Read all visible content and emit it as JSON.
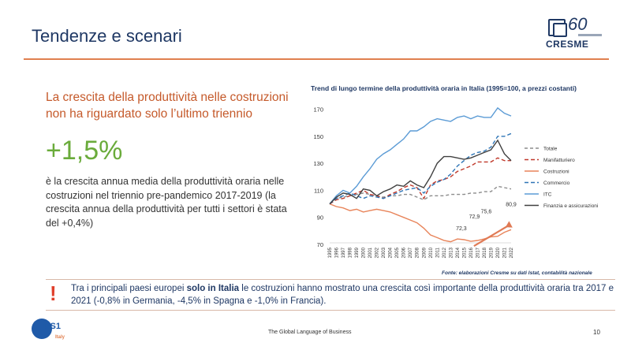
{
  "slide": {
    "title": "Tendenze e scenari",
    "logo_text": "CRESME",
    "logo_number": "60",
    "headline": "La crescita della produttività nelle costruzioni non ha riguardato solo l’ultimo triennio",
    "big_number": "+1,5%",
    "description": "è la crescita annua media della produttività oraria nelle costruzioni nel triennio pre-pandemico 2017-2019 (la crescita annua della produttività per tutti i settori è stata del +0,4%)",
    "note_prefix": "Tra i principali paesi europei ",
    "note_bold": "solo in Italia",
    "note_suffix": " le costruzioni hanno mostrato una crescita così importante della produttività oraria tra 2017 e 2021 (-0,8% in Germania, -4,5% in Spagna e -1,0% in Francia).",
    "footer": "The Global Language of Business",
    "page_number": "10",
    "gs1_text": "GS1",
    "gs1_sub": "Italy"
  },
  "chart_data": {
    "type": "line",
    "title": "Trend di lungo termine della produttività oraria in Italia (1995=100, a prezzi costanti)",
    "source": "Fonte: elaborazioni Cresme su dati Istat, contabilità nazionale",
    "x": [
      "1995",
      "1996",
      "1997",
      "1998",
      "1999",
      "2000",
      "2001",
      "2002",
      "2003",
      "2004",
      "2005",
      "2006",
      "2007",
      "2008",
      "2009",
      "2010",
      "2011",
      "2012",
      "2013",
      "2014",
      "2015",
      "2016",
      "2017",
      "2018",
      "2019",
      "2020",
      "2021",
      "2022"
    ],
    "yticks": [
      70,
      90,
      110,
      130,
      150,
      170
    ],
    "ylim": [
      70,
      175
    ],
    "series": [
      {
        "name": "Totale",
        "color": "#8c8c8c",
        "dash": "4,3",
        "values": [
          100,
          104,
          105,
          106,
          107,
          108,
          107,
          106,
          105,
          106,
          106,
          107,
          107,
          105,
          103,
          106,
          106,
          106,
          107,
          107,
          107,
          108,
          108,
          109,
          109,
          113,
          112,
          111
        ]
      },
      {
        "name": "Manifatturiero",
        "color": "#c0392b",
        "dash": "5,3",
        "values": [
          100,
          103,
          104,
          106,
          108,
          110,
          107,
          106,
          104,
          107,
          109,
          112,
          114,
          112,
          104,
          114,
          117,
          118,
          120,
          124,
          126,
          128,
          131,
          131,
          131,
          134,
          132,
          132
        ]
      },
      {
        "name": "Costruzioni",
        "color": "#e8845a",
        "dash": "",
        "values": [
          100,
          98,
          97,
          95,
          96,
          94,
          95,
          96,
          95,
          94,
          92,
          90,
          88,
          86,
          82,
          77,
          75,
          73,
          72,
          74,
          73.5,
          72.3,
          72.9,
          74,
          75.6,
          76,
          79,
          80.9
        ]
      },
      {
        "name": "Commercio",
        "color": "#2e75b6",
        "dash": "5,3",
        "values": [
          100,
          104,
          106,
          108,
          106,
          104,
          106,
          105,
          104,
          106,
          108,
          110,
          111,
          112,
          108,
          113,
          116,
          118,
          122,
          128,
          132,
          136,
          138,
          139,
          142,
          150,
          150,
          152
        ]
      },
      {
        "name": "ITC",
        "color": "#5b9bd5",
        "dash": "",
        "values": [
          100,
          106,
          110,
          108,
          113,
          120,
          126,
          133,
          137,
          140,
          144,
          148,
          154,
          154,
          157,
          161,
          163,
          162,
          161,
          164,
          165,
          163,
          165,
          164,
          164,
          171,
          167,
          165
        ]
      },
      {
        "name": "Finanzia e assicurazioni",
        "color": "#404040",
        "dash": "",
        "values": [
          100,
          105,
          108,
          107,
          104,
          111,
          110,
          106,
          109,
          111,
          114,
          113,
          117,
          114,
          112,
          120,
          130,
          135,
          135,
          134,
          133,
          134,
          136,
          138,
          140,
          147,
          137,
          132
        ]
      }
    ],
    "annotations": [
      {
        "label": "72,3",
        "x": "2016",
        "value": 72.3
      },
      {
        "label": "72,9",
        "x": "2017",
        "value": 72.9
      },
      {
        "label": "75,6",
        "x": "2019",
        "value": 75.6
      },
      {
        "label": "80,9",
        "x": "2022",
        "value": 80.9
      }
    ],
    "legend_position": "right"
  }
}
